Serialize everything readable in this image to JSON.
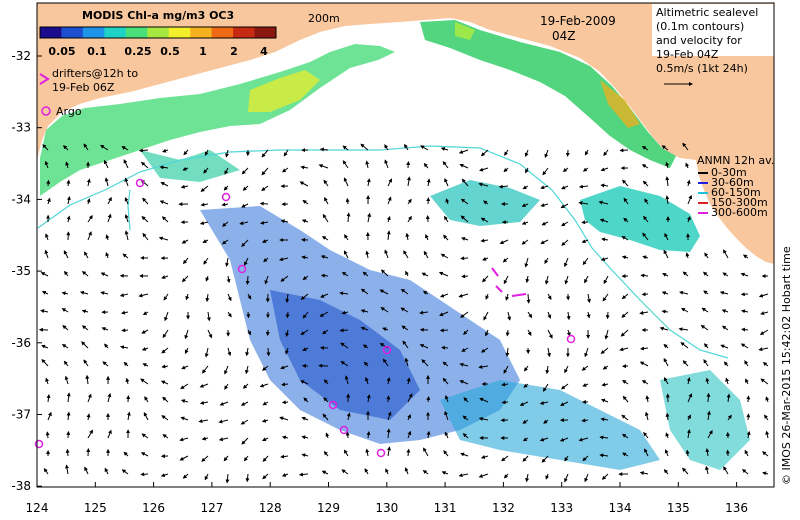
{
  "colorbar": {
    "title": "MODIS Chl-a mg/m3 OC3",
    "ticks": [
      "0.05",
      "0.1",
      "0.25",
      "0.5",
      "1",
      "2",
      "4"
    ],
    "colors": [
      "#1b0c8e",
      "#1f4fd1",
      "#1e94e8",
      "#1fd2c6",
      "#49e07a",
      "#a6e83f",
      "#f2ee2b",
      "#f6b21e",
      "#ee6a14",
      "#c72a13",
      "#8a1710"
    ]
  },
  "isobath_label": "200m",
  "date_label": {
    "date": "19-Feb-2009",
    "time": "04Z"
  },
  "altimetry": {
    "line1": "Altimetric sealevel",
    "line2": "(0.1m contours)",
    "line3": "and velocity for",
    "line4": "19-Feb 04Z",
    "scale_label": "0.5m/s (1kt 24h)"
  },
  "drifters": {
    "line1": "drifters@12h to",
    "line2": "19-Feb 06Z",
    "color": "#e020e0"
  },
  "argo": {
    "label": "Argo",
    "color": "#e020e0"
  },
  "anmn": {
    "title": "ANMN 12h av.",
    "items": [
      {
        "label": "0-30m",
        "color": "#000000"
      },
      {
        "label": "30-60m",
        "color": "#2020e0"
      },
      {
        "label": "60-150m",
        "color": "#20c0e0"
      },
      {
        "label": "150-300m",
        "color": "#e02020"
      },
      {
        "label": "300-600m",
        "color": "#e020e0"
      }
    ]
  },
  "credit": "© IMOS 26-Mar-2015 15:42:02 Hobart time",
  "axes": {
    "x_ticks": [
      "124",
      "125",
      "126",
      "127",
      "128",
      "129",
      "130",
      "131",
      "132",
      "133",
      "134",
      "135",
      "136"
    ],
    "y_ticks": [
      "-32",
      "-33",
      "-34",
      "-35",
      "-36",
      "-37",
      "-38"
    ]
  },
  "colors": {
    "land": "#f9c79e",
    "isobath": "#4fd6d6"
  }
}
